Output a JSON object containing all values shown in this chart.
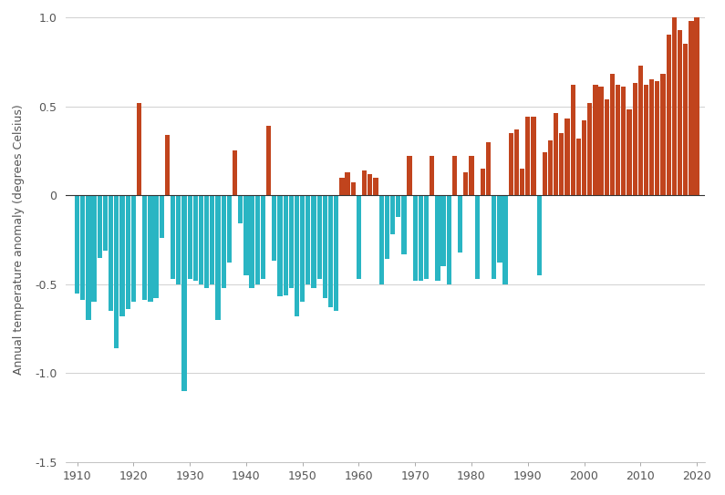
{
  "years": [
    1910,
    1911,
    1912,
    1913,
    1914,
    1915,
    1916,
    1917,
    1918,
    1919,
    1920,
    1921,
    1922,
    1923,
    1924,
    1925,
    1926,
    1927,
    1928,
    1929,
    1930,
    1931,
    1932,
    1933,
    1934,
    1935,
    1936,
    1937,
    1938,
    1939,
    1940,
    1941,
    1942,
    1943,
    1944,
    1945,
    1946,
    1947,
    1948,
    1949,
    1950,
    1951,
    1952,
    1953,
    1954,
    1955,
    1956,
    1957,
    1958,
    1959,
    1960,
    1961,
    1962,
    1963,
    1964,
    1965,
    1966,
    1967,
    1968,
    1969,
    1970,
    1971,
    1972,
    1973,
    1974,
    1975,
    1976,
    1977,
    1978,
    1979,
    1980,
    1981,
    1982,
    1983,
    1984,
    1985,
    1986,
    1987,
    1988,
    1989,
    1990,
    1991,
    1992,
    1993,
    1994,
    1995,
    1996,
    1997,
    1998,
    1999,
    2000,
    2001,
    2002,
    2003,
    2004,
    2005,
    2006,
    2007,
    2008,
    2009,
    2010,
    2011,
    2012,
    2013,
    2014,
    2015,
    2016,
    2017,
    2018,
    2019,
    2020
  ],
  "anomalies": [
    -0.55,
    -0.59,
    -0.7,
    -0.6,
    -0.35,
    -0.31,
    -0.65,
    -0.86,
    -0.68,
    -0.64,
    -0.6,
    0.52,
    -0.59,
    -0.6,
    -0.58,
    -0.24,
    0.34,
    -0.47,
    -0.5,
    -1.1,
    -0.47,
    -0.48,
    -0.5,
    -0.52,
    -0.5,
    -0.7,
    -0.52,
    -0.38,
    0.25,
    -0.16,
    -0.45,
    -0.52,
    -0.5,
    -0.47,
    0.39,
    -0.37,
    -0.57,
    -0.56,
    -0.52,
    -0.68,
    -0.6,
    -0.5,
    -0.52,
    -0.47,
    -0.58,
    -0.63,
    -0.65,
    0.1,
    0.13,
    0.07,
    -0.47,
    0.14,
    0.12,
    0.1,
    -0.5,
    -0.36,
    -0.22,
    -0.12,
    -0.33,
    0.22,
    -0.48,
    -0.48,
    -0.47,
    0.22,
    -0.48,
    -0.4,
    -0.5,
    0.22,
    -0.32,
    0.13,
    0.22,
    -0.47,
    0.15,
    0.3,
    -0.47,
    -0.38,
    -0.5,
    0.35,
    0.37,
    0.15,
    0.44,
    0.44,
    -0.45,
    0.24,
    0.31,
    0.46,
    0.35,
    0.43,
    0.62,
    0.32,
    0.42,
    0.52,
    0.62,
    0.61,
    0.54,
    0.68,
    0.62,
    0.61,
    0.48,
    0.63,
    0.73,
    0.62,
    0.65,
    0.64,
    0.68,
    0.9,
    1.01,
    0.93,
    0.85,
    0.98,
    1.02
  ],
  "color_positive": "#C1441D",
  "color_negative": "#29B5C3",
  "ylabel": "Annual temperature anomaly (degrees Celsius)",
  "ylim": [
    -1.5,
    1.0
  ],
  "yticks": [
    -1.5,
    -1.0,
    -0.5,
    0.0,
    0.5,
    1.0
  ],
  "xlim": [
    1908.0,
    2021.5
  ],
  "xticks": [
    1910,
    1920,
    1930,
    1940,
    1950,
    1960,
    1970,
    1980,
    1990,
    2000,
    2010,
    2020
  ],
  "background_color": "#ffffff",
  "grid_color": "#d0d0d0",
  "bar_width": 0.85
}
